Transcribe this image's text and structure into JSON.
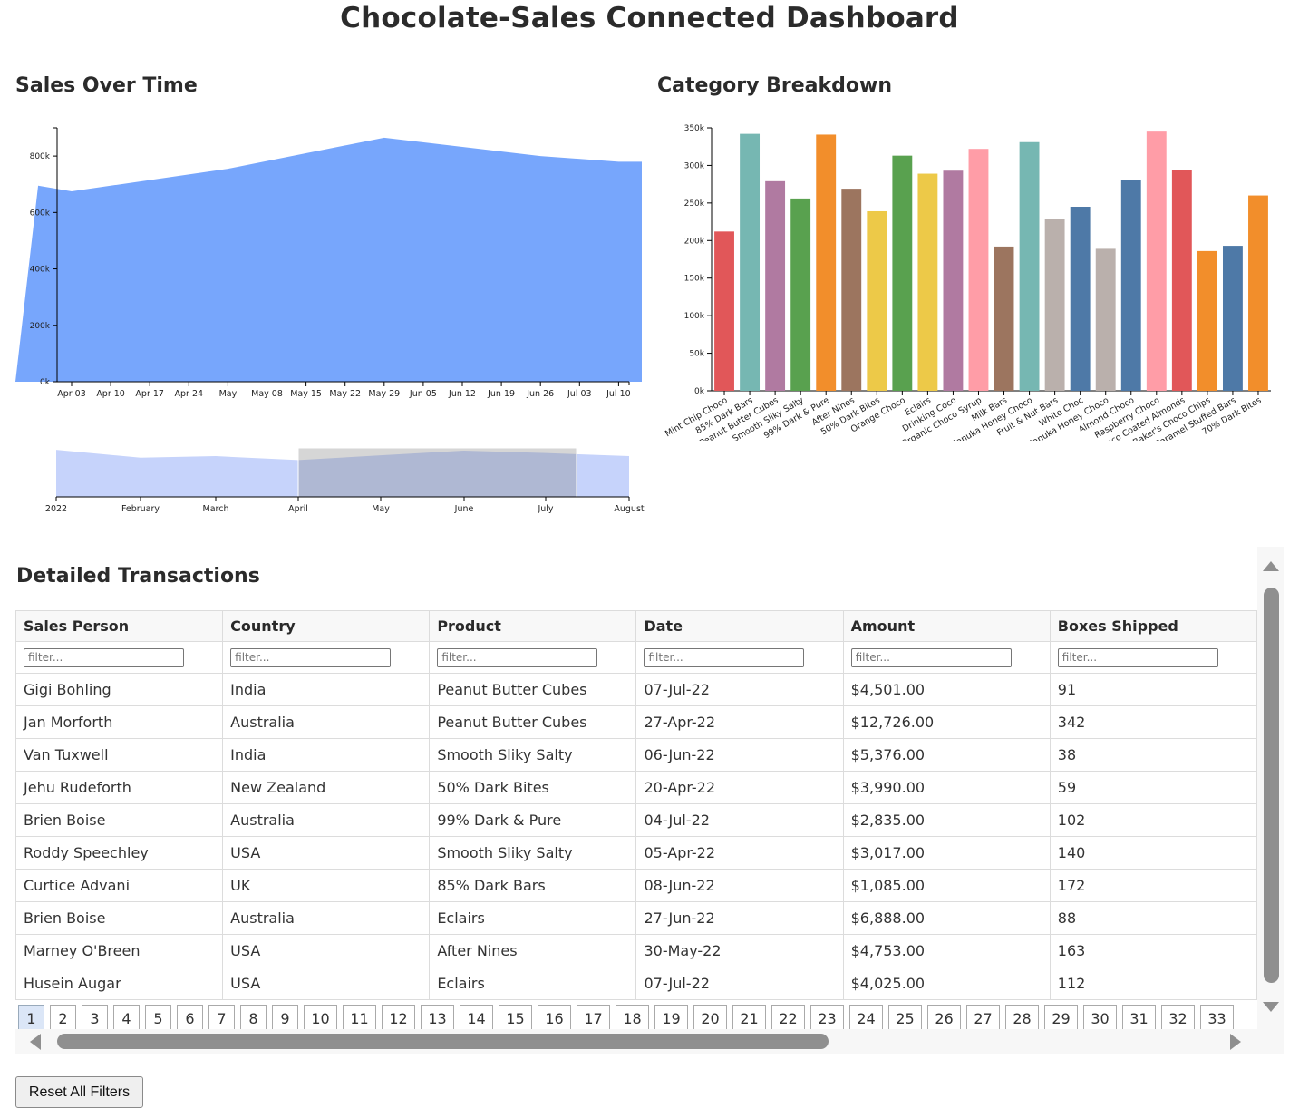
{
  "title": "Chocolate-Sales Connected Dashboard",
  "sections": {
    "sales_over_time": "Sales Over Time",
    "category_breakdown": "Category Breakdown",
    "detailed_transactions": "Detailed Transactions"
  },
  "colors": {
    "area": "#77a6fc",
    "context_area": "#c6d3fb",
    "brush_selection": "#7f7f7f",
    "accent_page": "#dbe6f7"
  },
  "chart_data": [
    {
      "type": "area",
      "name": "sales-over-time",
      "title": "Sales Over Time",
      "x_tick_labels": [
        "Apr 03",
        "Apr 10",
        "Apr 17",
        "Apr 24",
        "May",
        "May 08",
        "May 15",
        "May 22",
        "May 29",
        "Jun 05",
        "Jun 12",
        "Jun 19",
        "Jun 26",
        "Jul 03",
        "Jul 10"
      ],
      "x": [
        "2022-03-28",
        "2022-04-03",
        "2022-05-01",
        "2022-05-29",
        "2022-06-26",
        "2022-07-10",
        "2022-07-17"
      ],
      "values": [
        695000,
        675000,
        755000,
        865000,
        800000,
        780000,
        780000
      ],
      "yticks": [
        "0k",
        "200k",
        "400k",
        "600k",
        "800k"
      ],
      "ylim": [
        0,
        900000
      ]
    },
    {
      "type": "area",
      "name": "date-range-context",
      "x_tick_labels": [
        "2022",
        "February",
        "March",
        "April",
        "May",
        "June",
        "July",
        "August"
      ],
      "x": [
        "2022-01-01",
        "2022-02-01",
        "2022-03-01",
        "2022-04-01",
        "2022-05-01",
        "2022-06-01",
        "2022-07-01",
        "2022-08-01"
      ],
      "values": [
        830000,
        730000,
        750000,
        700000,
        760000,
        820000,
        790000,
        750000
      ],
      "ylim": [
        0,
        900000
      ],
      "brush_selection": [
        "2022-04-01",
        "2022-07-04"
      ]
    },
    {
      "type": "bar",
      "name": "category-breakdown",
      "title": "Category Breakdown",
      "categories": [
        "Mint Chip Choco",
        "85% Dark Bars",
        "Peanut Butter Cubes",
        "Smooth Sliky Salty",
        "99% Dark & Pure",
        "After Nines",
        "50% Dark Bites",
        "Orange Choco",
        "Eclairs",
        "Drinking Coco",
        "Organic Choco Syrup",
        "Milk Bars",
        "Manuka Honey Choco",
        "Fruit & Nut Bars",
        "White Choc",
        "Manuka Honey Choco",
        "Almond Choco",
        "Raspberry Choco",
        "Choco Coated Almonds",
        "Baker's Choco Chips",
        "Caramel Stuffed Bars",
        "70% Dark Bites"
      ],
      "values": [
        212000,
        342000,
        279000,
        256000,
        341000,
        269000,
        239000,
        313000,
        289000,
        293000,
        322000,
        192000,
        331000,
        229000,
        245000,
        189000,
        281000,
        345000,
        294000,
        186000,
        193000,
        260000
      ],
      "colors": [
        "#e15759",
        "#76b7b2",
        "#b07aa1",
        "#59a14f",
        "#f28e2b",
        "#9c755f",
        "#edc948",
        "#59a14f",
        "#edc948",
        "#b07aa1",
        "#ff9da7",
        "#9c755f",
        "#76b7b2",
        "#bab0ac",
        "#4e79a7",
        "#bab0ac",
        "#4e79a7",
        "#ff9da7",
        "#e15759",
        "#f28e2b",
        "#4e79a7",
        "#f28e2b"
      ],
      "yticks": [
        "0k",
        "50k",
        "100k",
        "150k",
        "200k",
        "250k",
        "300k",
        "350k"
      ],
      "ylim": [
        0,
        350000
      ]
    }
  ],
  "table": {
    "columns": [
      "Sales Person",
      "Country",
      "Product",
      "Date",
      "Amount",
      "Boxes Shipped"
    ],
    "filter_placeholder": "filter...",
    "rows": [
      [
        "Gigi Bohling",
        "India",
        "Peanut Butter Cubes",
        "07-Jul-22",
        "$4,501.00",
        "91"
      ],
      [
        "Jan Morforth",
        "Australia",
        "Peanut Butter Cubes",
        "27-Apr-22",
        "$12,726.00",
        "342"
      ],
      [
        "Van Tuxwell",
        "India",
        "Smooth Sliky Salty",
        "06-Jun-22",
        "$5,376.00",
        "38"
      ],
      [
        "Jehu Rudeforth",
        "New Zealand",
        "50% Dark Bites",
        "20-Apr-22",
        "$3,990.00",
        "59"
      ],
      [
        "Brien Boise",
        "Australia",
        "99% Dark & Pure",
        "04-Jul-22",
        "$2,835.00",
        "102"
      ],
      [
        "Roddy Speechley",
        "USA",
        "Smooth Sliky Salty",
        "05-Apr-22",
        "$3,017.00",
        "140"
      ],
      [
        "Curtice Advani",
        "UK",
        "85% Dark Bars",
        "08-Jun-22",
        "$1,085.00",
        "172"
      ],
      [
        "Brien Boise",
        "Australia",
        "Eclairs",
        "27-Jun-22",
        "$6,888.00",
        "88"
      ],
      [
        "Marney O'Breen",
        "USA",
        "After Nines",
        "30-May-22",
        "$4,753.00",
        "163"
      ],
      [
        "Husein Augar",
        "USA",
        "Eclairs",
        "07-Jul-22",
        "$4,025.00",
        "112"
      ]
    ],
    "pages": [
      "1",
      "2",
      "3",
      "4",
      "5",
      "6",
      "7",
      "8",
      "9",
      "10",
      "11",
      "12",
      "13",
      "14",
      "15",
      "16",
      "17",
      "18",
      "19",
      "20",
      "21",
      "22",
      "23",
      "24",
      "25",
      "26",
      "27",
      "28",
      "29",
      "30",
      "31",
      "32",
      "33"
    ],
    "active_page": "1"
  },
  "reset_button": "Reset All Filters"
}
